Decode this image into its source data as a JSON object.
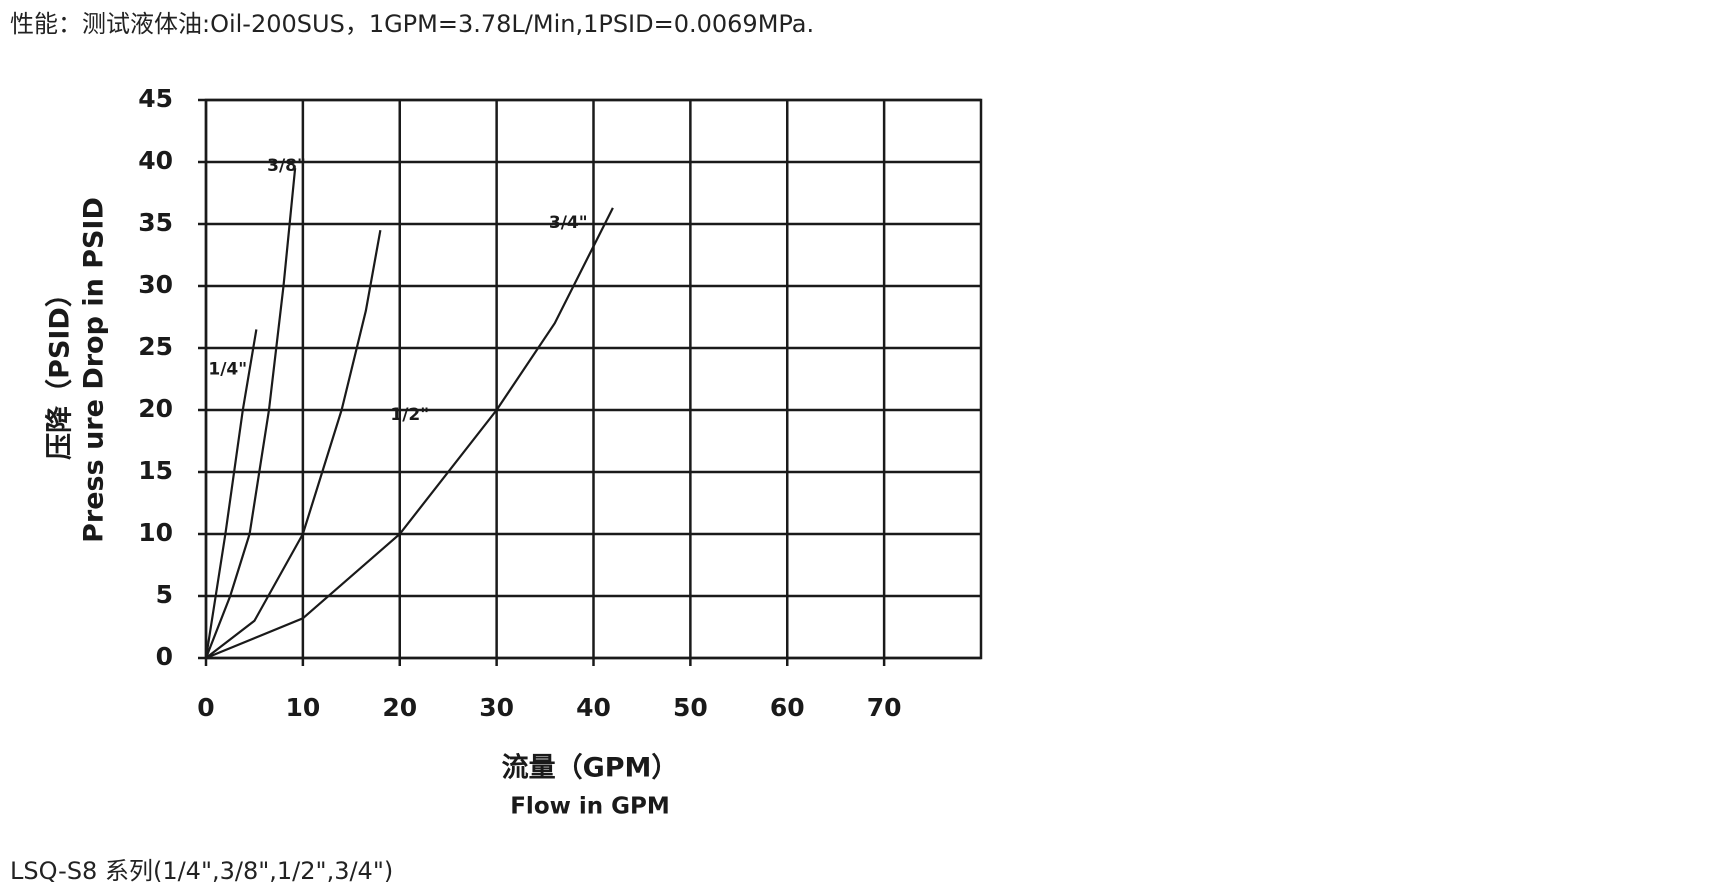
{
  "header_text": "性能：测试液体油:Oil-200SUS，1GPM=3.78L/Min,1PSID=0.0069MPa.",
  "footer_text": "LSQ-S8 系列(1/4\",3/8\",1/2\",3/4\")",
  "chart_data": {
    "type": "line",
    "xlabel": "流量（GPM）",
    "xlabel_en": "Flow in GPM",
    "ylabel": "压降（PSID）",
    "ylabel_en": "Press ure Drop in PSID",
    "xlim": [
      0,
      80
    ],
    "ylim": [
      0,
      45
    ],
    "xticks": [
      0,
      10,
      20,
      30,
      40,
      50,
      60,
      70
    ],
    "yticks": [
      0,
      5,
      10,
      15,
      20,
      25,
      30,
      35,
      40,
      45
    ],
    "grid": true,
    "series": [
      {
        "name": "1/4\"",
        "color": "#1a1a1a",
        "x": [
          0,
          1,
          2,
          3.8,
          5.2
        ],
        "values": [
          0,
          5,
          10,
          20,
          26.5
        ]
      },
      {
        "name": "3/8\"",
        "color": "#1a1a1a",
        "x": [
          0,
          2.5,
          4.5,
          6.5,
          8,
          9.2
        ],
        "values": [
          0,
          5,
          10,
          20,
          30,
          39.5
        ]
      },
      {
        "name": "1/2\"",
        "color": "#1a1a1a",
        "x": [
          0,
          5,
          10,
          14,
          16.5,
          18
        ],
        "values": [
          0,
          3,
          10,
          20,
          28,
          34.5
        ]
      },
      {
        "name": "3/4\"",
        "color": "#1a1a1a",
        "x": [
          0,
          10,
          20,
          30,
          36,
          42
        ],
        "values": [
          0,
          3.2,
          10,
          20,
          27,
          36.3
        ]
      }
    ]
  }
}
